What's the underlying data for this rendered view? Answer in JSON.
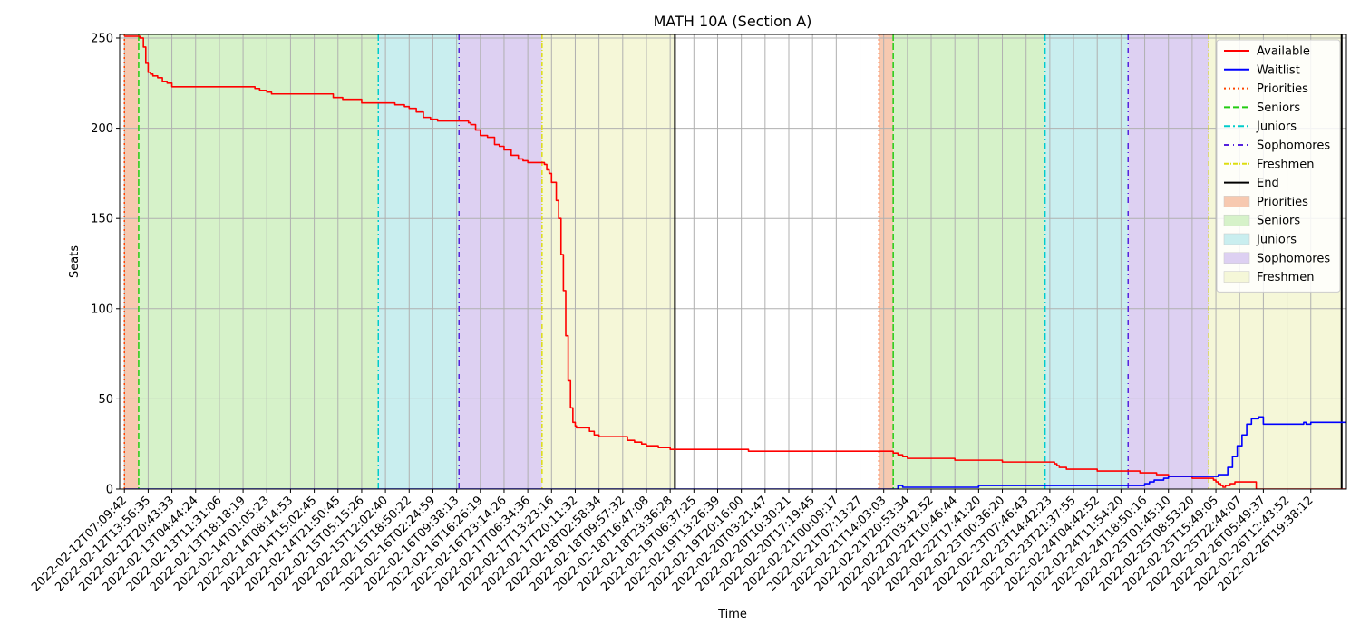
{
  "chart_data": {
    "type": "line",
    "title": "MATH 10A (Section A)",
    "xlabel": "Time",
    "ylabel": "Seats",
    "ylim": [
      0,
      252
    ],
    "yticks": [
      0,
      50,
      100,
      150,
      200,
      250
    ],
    "grid": true,
    "legend_position": "top-right",
    "x_tick_labels": [
      "2022-02-12T07:09:42",
      "2022-02-12T13:56:35",
      "2022-02-12T20:43:33",
      "2022-02-13T04:44:24",
      "2022-02-13T11:31:06",
      "2022-02-13T18:18:19",
      "2022-02-14T01:05:23",
      "2022-02-14T08:14:53",
      "2022-02-14T15:02:45",
      "2022-02-14T21:50:45",
      "2022-02-15T05:15:26",
      "2022-02-15T12:02:40",
      "2022-02-15T18:50:22",
      "2022-02-16T02:24:59",
      "2022-02-16T09:38:13",
      "2022-02-16T16:26:19",
      "2022-02-16T23:14:26",
      "2022-02-17T06:34:36",
      "2022-02-17T13:23:16",
      "2022-02-17T20:11:32",
      "2022-02-18T02:58:34",
      "2022-02-18T09:57:32",
      "2022-02-18T16:47:08",
      "2022-02-18T23:36:28",
      "2022-02-19T06:37:25",
      "2022-02-19T13:26:39",
      "2022-02-19T20:16:00",
      "2022-02-20T03:21:47",
      "2022-02-20T10:30:21",
      "2022-02-20T17:19:45",
      "2022-02-21T00:09:17",
      "2022-02-21T07:13:27",
      "2022-02-21T14:03:03",
      "2022-02-21T20:53:34",
      "2022-02-22T03:42:52",
      "2022-02-22T10:46:44",
      "2022-02-22T17:41:20",
      "2022-02-23T00:36:20",
      "2022-02-23T07:46:43",
      "2022-02-23T14:42:23",
      "2022-02-23T21:37:55",
      "2022-02-24T04:42:52",
      "2022-02-24T11:54:20",
      "2022-02-24T18:50:16",
      "2022-02-25T01:45:10",
      "2022-02-25T08:53:20",
      "2022-02-25T15:49:05",
      "2022-02-25T22:44:07",
      "2022-02-26T05:49:37",
      "2022-02-26T12:43:52",
      "2022-02-26T19:38:12"
    ],
    "x_range_index": [
      -0.2,
      51.5
    ],
    "phases": [
      {
        "name": "Priorities",
        "start": 0.0,
        "end": 0.6,
        "color": "#f7c9b0",
        "line_color": "#ff4500",
        "dash": "2,3"
      },
      {
        "name": "Seniors",
        "start": 0.6,
        "end": 10.7,
        "color": "#d6f2c9",
        "line_color": "#22cc11",
        "dash": "7,3"
      },
      {
        "name": "Juniors",
        "start": 10.7,
        "end": 14.1,
        "color": "#c9eeef",
        "line_color": "#00cccc",
        "dash": "7,3,2,3"
      },
      {
        "name": "Sophomores",
        "start": 14.1,
        "end": 17.6,
        "color": "#ddd0f2",
        "line_color": "#5522dd",
        "dash": "6,4,1,4"
      },
      {
        "name": "Freshmen",
        "start": 17.6,
        "end": 23.2,
        "color": "#f5f7d8",
        "line_color": "#dddd11",
        "dash": "5,2,1,2"
      },
      {
        "name": "Priorities",
        "start": 31.8,
        "end": 32.4,
        "color": "#f7c9b0",
        "line_color": "#ff4500",
        "dash": "2,3"
      },
      {
        "name": "Seniors",
        "start": 32.4,
        "end": 38.8,
        "color": "#d6f2c9",
        "line_color": "#22cc11",
        "dash": "7,3"
      },
      {
        "name": "Juniors",
        "start": 38.8,
        "end": 42.3,
        "color": "#c9eeef",
        "line_color": "#00cccc",
        "dash": "7,3,2,3"
      },
      {
        "name": "Sophomores",
        "start": 42.3,
        "end": 45.7,
        "color": "#ddd0f2",
        "line_color": "#5522dd",
        "dash": "6,4,1,4"
      },
      {
        "name": "Freshmen",
        "start": 45.7,
        "end": 51.3,
        "color": "#f5f7d8",
        "line_color": "#dddd11",
        "dash": "5,2,1,2"
      }
    ],
    "end_lines": [
      23.2,
      51.3
    ],
    "series": [
      {
        "name": "Available",
        "color": "#ff0000",
        "x": [
          0,
          0.4,
          0.5,
          0.65,
          0.8,
          0.9,
          1.0,
          1.1,
          1.2,
          1.4,
          1.6,
          1.8,
          2.0,
          2.2,
          2.6,
          3.0,
          3.2,
          4.0,
          5.0,
          5.5,
          5.7,
          6.0,
          6.2,
          6.5,
          7.0,
          8.0,
          8.5,
          8.8,
          9.2,
          9.6,
          10.0,
          10.3,
          10.6,
          11.0,
          11.4,
          11.8,
          12.0,
          12.3,
          12.6,
          12.9,
          13.2,
          13.6,
          14.0,
          14.3,
          14.5,
          14.6,
          14.8,
          15.0,
          15.3,
          15.6,
          15.8,
          16.0,
          16.3,
          16.6,
          16.8,
          17.0,
          17.6,
          17.7,
          17.8,
          17.9,
          18.0,
          18.2,
          18.3,
          18.4,
          18.5,
          18.6,
          18.7,
          18.8,
          18.9,
          19.0,
          19.05,
          19.1,
          19.2,
          19.3,
          19.6,
          19.8,
          20.0,
          20.2,
          20.5,
          21.0,
          21.2,
          21.5,
          21.8,
          22.0,
          22.5,
          23.0,
          24.0,
          26.0,
          26.3,
          27.0,
          30.0,
          31.0,
          32.0,
          32.3,
          32.4,
          32.6,
          32.7,
          32.8,
          33.0,
          34.0,
          35.0,
          35.5,
          36.0,
          36.3,
          37.0,
          38.0,
          38.5,
          38.8,
          39.0,
          39.2,
          39.3,
          39.4,
          39.5,
          39.7,
          40.0,
          41.0,
          42.0,
          42.3,
          42.5,
          42.8,
          43.0,
          43.5,
          44.0,
          45.0,
          45.5,
          45.7,
          45.9,
          46.0,
          46.1,
          46.2,
          46.3,
          46.4,
          46.6,
          46.8,
          47.0,
          47.2,
          47.6,
          47.7,
          48.0,
          51.5
        ],
        "y": [
          251,
          251,
          251,
          250,
          245,
          236,
          231,
          230,
          229,
          228,
          226,
          225,
          223,
          223,
          223,
          223,
          223,
          223,
          223,
          222,
          221,
          220,
          219,
          219,
          219,
          219,
          219,
          217,
          216,
          216,
          214,
          214,
          214,
          214,
          213,
          212,
          211,
          209,
          206,
          205,
          204,
          204,
          204,
          204,
          203,
          202,
          199,
          196,
          195,
          191,
          190,
          188,
          185,
          183,
          182,
          181,
          181,
          180,
          177,
          175,
          170,
          160,
          150,
          130,
          110,
          85,
          60,
          45,
          37,
          35,
          34,
          34,
          34,
          34,
          32,
          30,
          29,
          29,
          29,
          29,
          27,
          26,
          25,
          24,
          23,
          22,
          22,
          22,
          21,
          21,
          21,
          21,
          21,
          21,
          20,
          19,
          19,
          18,
          17,
          17,
          16,
          16,
          16,
          16,
          15,
          15,
          15,
          15,
          15,
          14,
          13,
          12,
          12,
          11,
          11,
          10,
          10,
          10,
          10,
          9,
          9,
          8,
          7,
          6,
          6,
          6,
          5,
          4,
          3,
          2,
          1,
          2,
          3,
          4,
          4,
          4,
          4,
          0,
          0,
          0
        ]
      },
      {
        "name": "Waitlist",
        "color": "#0000ff",
        "x": [
          0,
          32.0,
          32.5,
          32.6,
          32.8,
          33.0,
          34.0,
          35.0,
          36.0,
          37.0,
          38.0,
          39.0,
          40.0,
          41.0,
          42.0,
          42.3,
          42.5,
          42.8,
          43.0,
          43.2,
          43.4,
          43.6,
          43.8,
          44.0,
          45.0,
          45.5,
          45.9,
          46.1,
          46.3,
          46.5,
          46.7,
          46.9,
          47.1,
          47.3,
          47.5,
          47.8,
          48.0,
          49.0,
          49.5,
          49.7,
          49.8,
          50.0,
          51.5
        ],
        "y": [
          0,
          0,
          0,
          2,
          1,
          1,
          1,
          1,
          2,
          2,
          2,
          2,
          2,
          2,
          2,
          2,
          2,
          2,
          3,
          4,
          5,
          5,
          6,
          7,
          7,
          7,
          7,
          8,
          8,
          12,
          18,
          24,
          30,
          36,
          39,
          40,
          36,
          36,
          36,
          37,
          36,
          37,
          37
        ]
      }
    ],
    "legend": [
      {
        "label": "Available",
        "kind": "line",
        "color": "#ff0000",
        "dash": ""
      },
      {
        "label": "Waitlist",
        "kind": "line",
        "color": "#0000ff",
        "dash": ""
      },
      {
        "label": "Priorities",
        "kind": "line",
        "color": "#ff4500",
        "dash": "2,3"
      },
      {
        "label": "Seniors",
        "kind": "line",
        "color": "#22cc11",
        "dash": "7,3"
      },
      {
        "label": "Juniors",
        "kind": "line",
        "color": "#00cccc",
        "dash": "7,3,2,3"
      },
      {
        "label": "Sophomores",
        "kind": "line",
        "color": "#5522dd",
        "dash": "6,4,1,4"
      },
      {
        "label": "Freshmen",
        "kind": "line",
        "color": "#dddd11",
        "dash": "5,2,1,2"
      },
      {
        "label": "End",
        "kind": "line",
        "color": "#000000",
        "dash": ""
      },
      {
        "label": "Priorities",
        "kind": "patch",
        "color": "#f7c9b0"
      },
      {
        "label": "Seniors",
        "kind": "patch",
        "color": "#d6f2c9"
      },
      {
        "label": "Juniors",
        "kind": "patch",
        "color": "#c9eeef"
      },
      {
        "label": "Sophomores",
        "kind": "patch",
        "color": "#ddd0f2"
      },
      {
        "label": "Freshmen",
        "kind": "patch",
        "color": "#f5f7d8"
      }
    ]
  }
}
